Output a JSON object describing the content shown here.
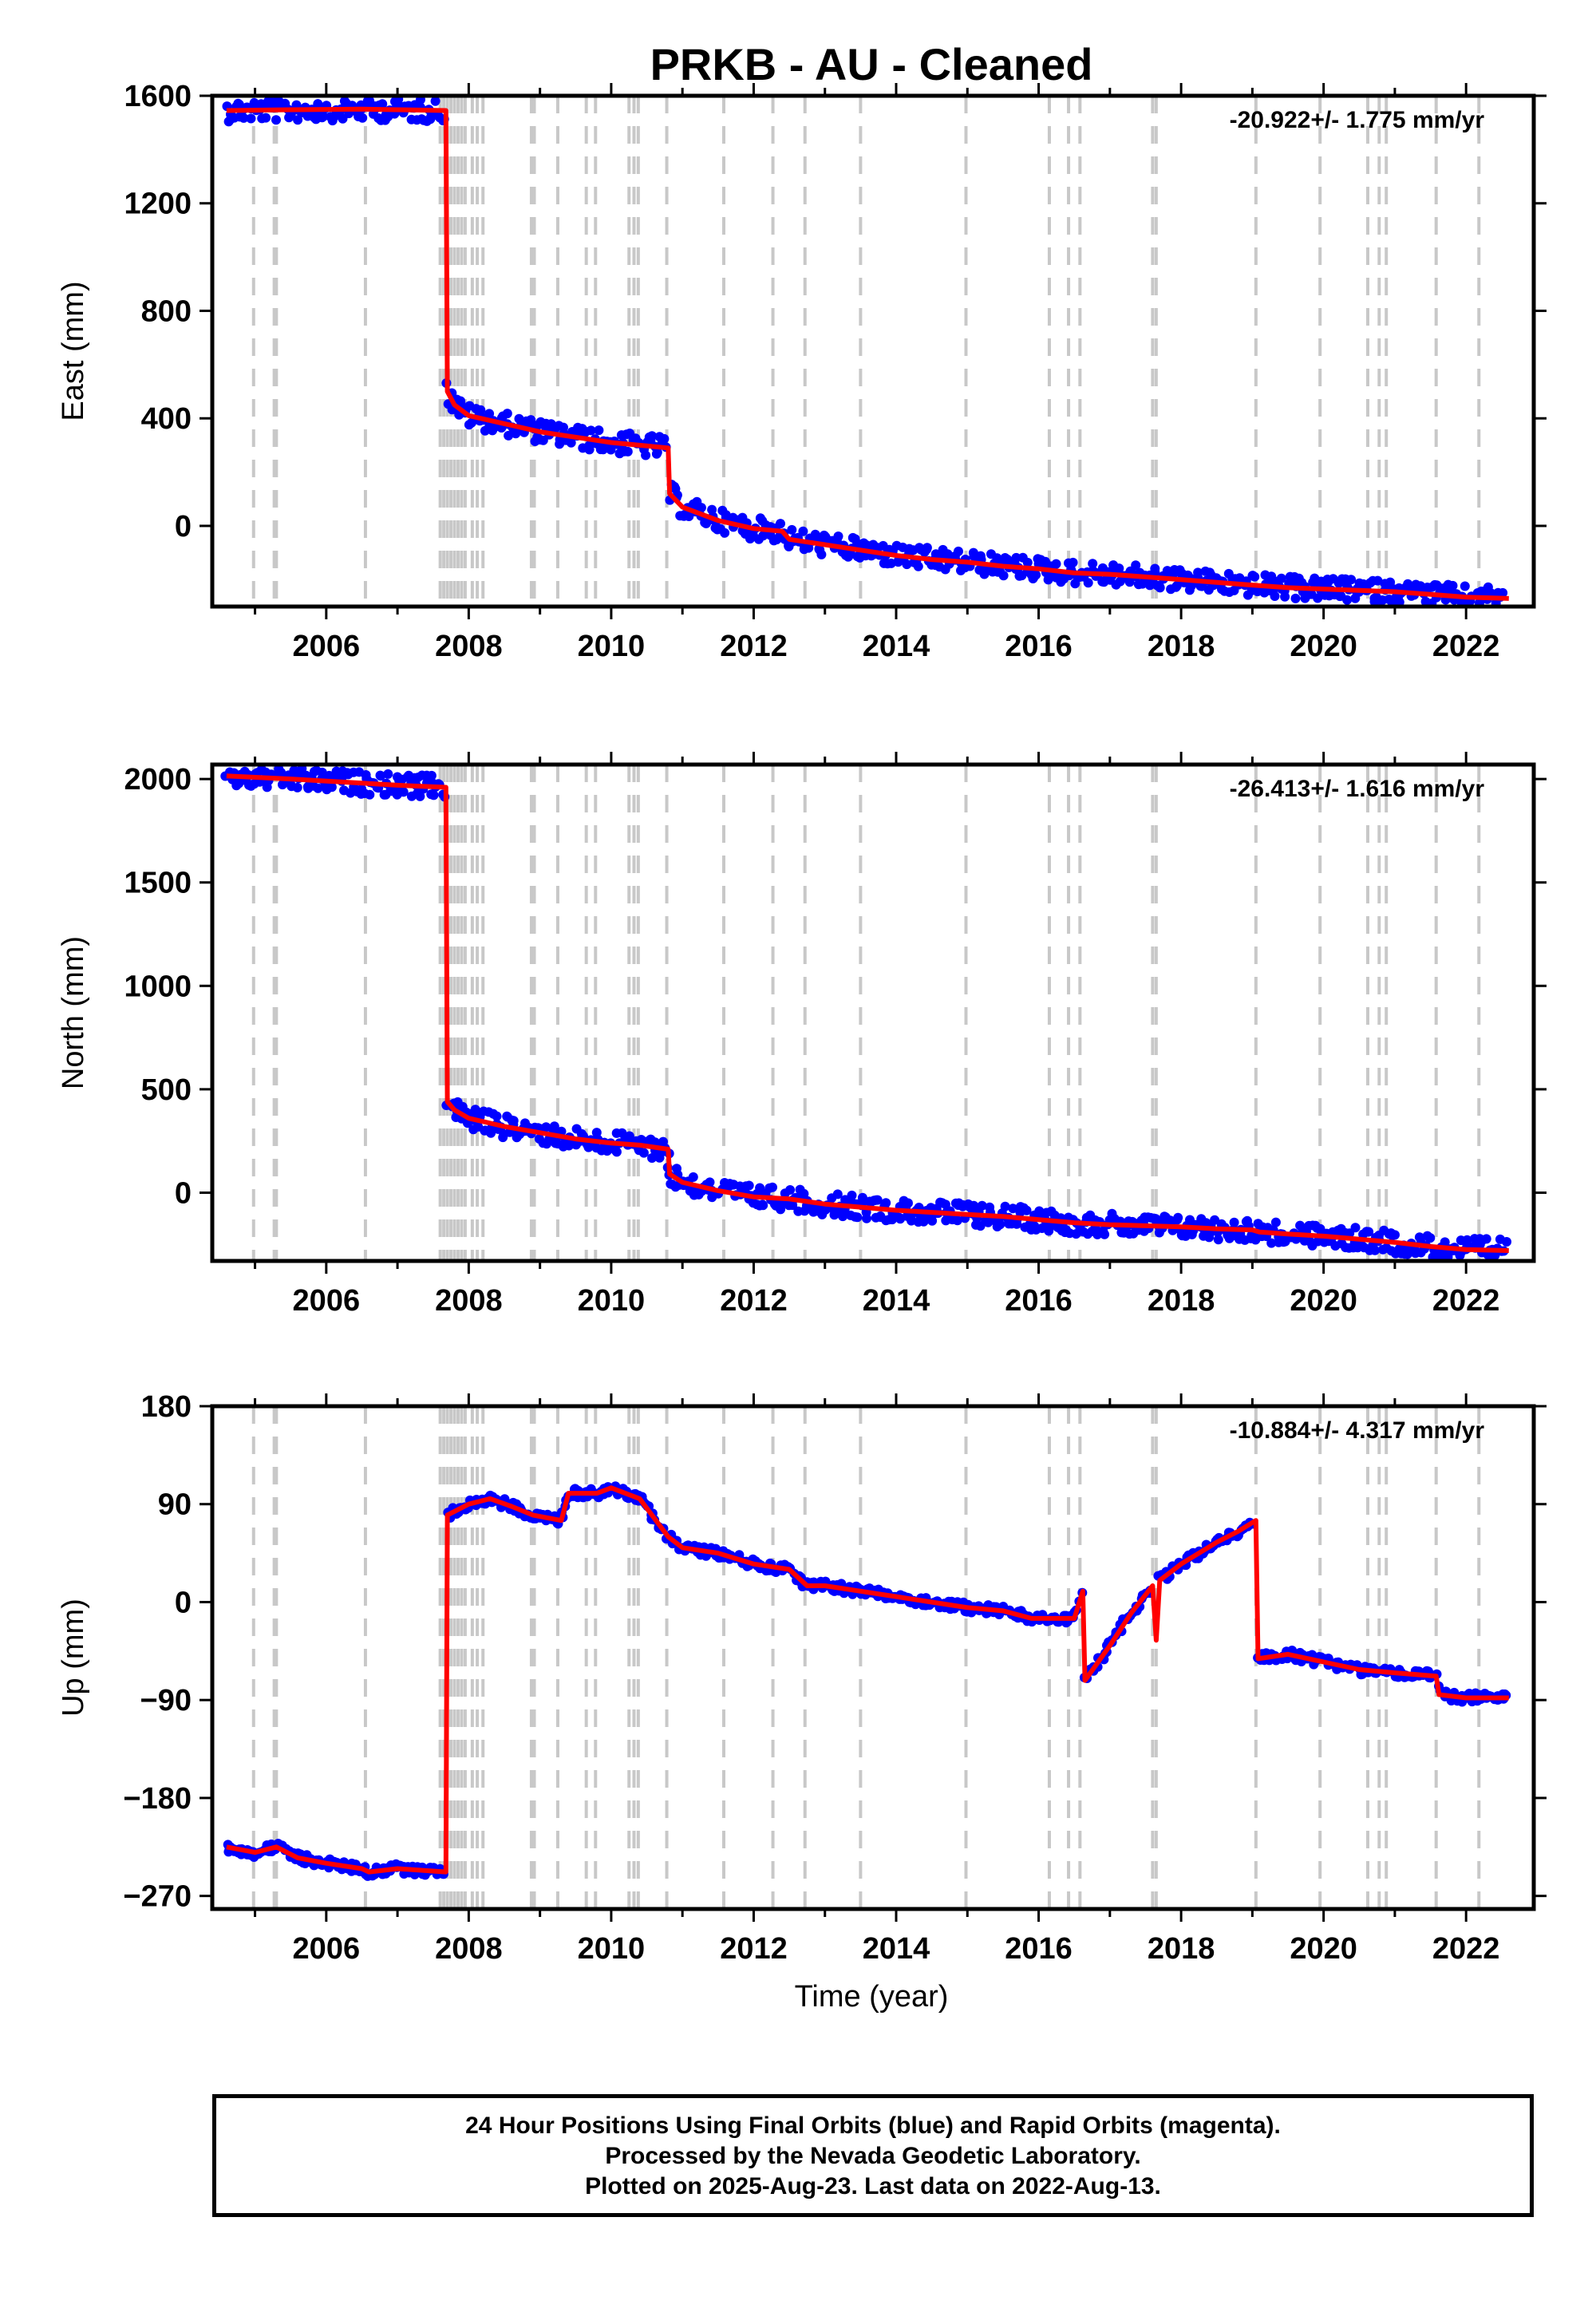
{
  "chart_data": {
    "type": "scatter",
    "title": "PRKB  - AU - Cleaned",
    "xlabel": "Time (year)",
    "xlim": [
      2004.4,
      2022.95
    ],
    "xticks": [
      2006,
      2008,
      2010,
      2012,
      2014,
      2016,
      2018,
      2020,
      2022
    ],
    "grid": false,
    "colors": {
      "observations": "#0000ff",
      "model": "#ff0000",
      "events": "#c8c8c8"
    },
    "event_lines": [
      2004.98,
      2005.27,
      2005.3,
      2006.55,
      2007.6,
      2007.65,
      2007.7,
      2007.75,
      2007.8,
      2007.85,
      2007.9,
      2007.95,
      2008.05,
      2008.12,
      2008.2,
      2008.88,
      2008.92,
      2009.25,
      2009.65,
      2009.78,
      2010.25,
      2010.32,
      2010.38,
      2010.78,
      2011.58,
      2012.27,
      2012.72,
      2013.5,
      2014.98,
      2016.15,
      2016.42,
      2016.58,
      2017.6,
      2017.65,
      2019.05,
      2019.95,
      2020.62,
      2020.78,
      2020.88,
      2021.58,
      2022.18
    ],
    "panels": [
      {
        "name": "east",
        "ylabel": "East (mm)",
        "ylim": [
          -300,
          1600
        ],
        "yticks": [
          1600,
          1200,
          800,
          400,
          0
        ],
        "rate_text": "-20.922+/- 1.775 mm/yr",
        "series": [
          {
            "values": [
              [
                2004.6,
                1545
              ],
              [
                2005.5,
                1548
              ],
              [
                2006.5,
                1550
              ],
              [
                2007.0,
                1548
              ],
              [
                2007.68,
                1545
              ],
              [
                2007.7,
                500
              ],
              [
                2007.8,
                450
              ],
              [
                2008.0,
                410
              ],
              [
                2008.5,
                380
              ],
              [
                2009.0,
                350
              ],
              [
                2009.5,
                330
              ],
              [
                2010.0,
                310
              ],
              [
                2010.4,
                300
              ],
              [
                2010.8,
                290
              ],
              [
                2010.82,
                120
              ],
              [
                2011.0,
                70
              ],
              [
                2011.5,
                20
              ],
              [
                2012.0,
                -10
              ],
              [
                2012.4,
                -20
              ],
              [
                2012.5,
                -50
              ],
              [
                2013.0,
                -70
              ],
              [
                2013.5,
                -90
              ],
              [
                2014.0,
                -110
              ],
              [
                2014.5,
                -125
              ],
              [
                2015.0,
                -135
              ],
              [
                2015.5,
                -150
              ],
              [
                2016.0,
                -160
              ],
              [
                2016.5,
                -175
              ],
              [
                2017.0,
                -180
              ],
              [
                2017.5,
                -190
              ],
              [
                2018.0,
                -200
              ],
              [
                2018.5,
                -210
              ],
              [
                2019.0,
                -220
              ],
              [
                2019.5,
                -230
              ],
              [
                2020.0,
                -235
              ],
              [
                2020.5,
                -240
              ],
              [
                2021.0,
                -245
              ],
              [
                2021.5,
                -255
              ],
              [
                2022.0,
                -265
              ],
              [
                2022.6,
                -270
              ]
            ]
          }
        ]
      },
      {
        "name": "north",
        "ylabel": "North (mm)",
        "ylim": [
          -330,
          2070
        ],
        "yticks": [
          2000,
          1500,
          1000,
          500,
          0
        ],
        "rate_text": "-26.413+/- 1.616 mm/yr",
        "series": [
          {
            "values": [
              [
                2004.6,
                2015
              ],
              [
                2005.5,
                2000
              ],
              [
                2006.5,
                1980
              ],
              [
                2007.0,
                1970
              ],
              [
                2007.68,
                1960
              ],
              [
                2007.7,
                440
              ],
              [
                2007.8,
                400
              ],
              [
                2008.0,
                360
              ],
              [
                2008.5,
                320
              ],
              [
                2009.0,
                290
              ],
              [
                2009.5,
                260
              ],
              [
                2010.0,
                240
              ],
              [
                2010.4,
                230
              ],
              [
                2010.8,
                210
              ],
              [
                2010.82,
                90
              ],
              [
                2011.0,
                50
              ],
              [
                2011.5,
                10
              ],
              [
                2012.0,
                -20
              ],
              [
                2012.5,
                -30
              ],
              [
                2013.0,
                -55
              ],
              [
                2013.5,
                -70
              ],
              [
                2014.0,
                -85
              ],
              [
                2014.5,
                -95
              ],
              [
                2015.0,
                -105
              ],
              [
                2015.5,
                -115
              ],
              [
                2016.0,
                -130
              ],
              [
                2016.5,
                -145
              ],
              [
                2017.0,
                -155
              ],
              [
                2017.5,
                -160
              ],
              [
                2018.0,
                -165
              ],
              [
                2018.5,
                -175
              ],
              [
                2019.0,
                -180
              ],
              [
                2019.1,
                -190
              ],
              [
                2019.5,
                -200
              ],
              [
                2020.0,
                -210
              ],
              [
                2020.5,
                -225
              ],
              [
                2021.0,
                -240
              ],
              [
                2021.5,
                -260
              ],
              [
                2022.0,
                -275
              ],
              [
                2022.6,
                -280
              ]
            ]
          }
        ]
      },
      {
        "name": "up",
        "ylabel": "Up (mm)",
        "ylim": [
          -282,
          180
        ],
        "yticks": [
          180,
          90,
          0,
          -90,
          -180,
          -270
        ],
        "rate_text": "-10.884+/- 4.317 mm/yr",
        "series": [
          {
            "values": [
              [
                2004.6,
                -225
              ],
              [
                2005.0,
                -230
              ],
              [
                2005.3,
                -225
              ],
              [
                2005.6,
                -235
              ],
              [
                2006.0,
                -240
              ],
              [
                2006.5,
                -245
              ],
              [
                2006.6,
                -248
              ],
              [
                2007.0,
                -245
              ],
              [
                2007.68,
                -248
              ],
              [
                2007.7,
                80
              ],
              [
                2008.0,
                90
              ],
              [
                2008.3,
                95
              ],
              [
                2008.6,
                88
              ],
              [
                2008.9,
                80
              ],
              [
                2009.3,
                75
              ],
              [
                2009.4,
                100
              ],
              [
                2009.8,
                100
              ],
              [
                2010.0,
                105
              ],
              [
                2010.4,
                95
              ],
              [
                2010.8,
                60
              ],
              [
                2011.0,
                50
              ],
              [
                2011.5,
                45
              ],
              [
                2012.0,
                35
              ],
              [
                2012.5,
                30
              ],
              [
                2012.75,
                15
              ],
              [
                2013.0,
                15
              ],
              [
                2013.5,
                10
              ],
              [
                2014.0,
                5
              ],
              [
                2014.5,
                0
              ],
              [
                2015.0,
                -5
              ],
              [
                2015.5,
                -8
              ],
              [
                2015.9,
                -15
              ],
              [
                2016.5,
                -15
              ],
              [
                2016.62,
                10
              ],
              [
                2016.65,
                -72
              ],
              [
                2017.0,
                -40
              ],
              [
                2017.3,
                -10
              ],
              [
                2017.6,
                15
              ],
              [
                2017.65,
                -35
              ],
              [
                2017.7,
                20
              ],
              [
                2018.0,
                35
              ],
              [
                2018.5,
                55
              ],
              [
                2018.8,
                65
              ],
              [
                2019.05,
                75
              ],
              [
                2019.08,
                -52
              ],
              [
                2019.5,
                -48
              ],
              [
                2020.0,
                -55
              ],
              [
                2020.5,
                -62
              ],
              [
                2021.0,
                -65
              ],
              [
                2021.58,
                -68
              ],
              [
                2021.62,
                -85
              ],
              [
                2022.0,
                -88
              ],
              [
                2022.6,
                -88
              ]
            ]
          }
        ]
      }
    ]
  },
  "footer": {
    "line1": "24 Hour Positions Using Final Orbits (blue) and Rapid Orbits (magenta).",
    "line2": "Processed by the Nevada Geodetic Laboratory.",
    "line3": "Plotted on 2025-Aug-23. Last data on 2022-Aug-13."
  }
}
